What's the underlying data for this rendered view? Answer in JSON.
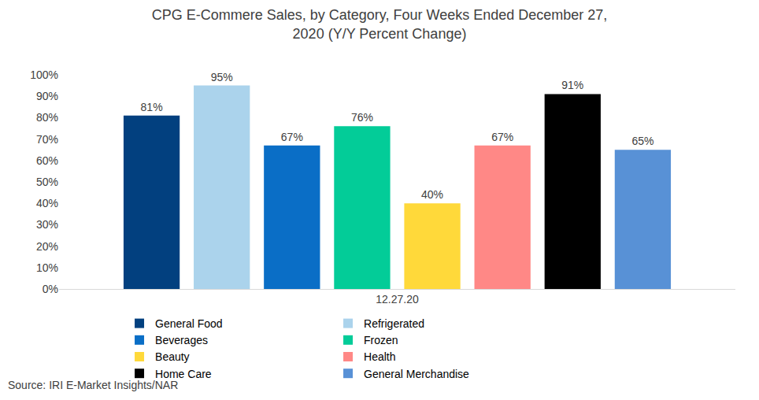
{
  "chart_data": {
    "type": "bar",
    "title": "CPG E-Commere Sales, by Category, Four Weeks Ended December 27,\n2020 (Y/Y Percent Change)",
    "source": "Source: IRI E-Market Insights/NAR",
    "categories": [
      "12.27.20"
    ],
    "series": [
      {
        "name": "General Food",
        "color": "#02407f",
        "values": [
          81
        ],
        "value_labels": [
          "81%"
        ]
      },
      {
        "name": "Refrigerated",
        "color": "#abd3ec",
        "values": [
          95
        ],
        "value_labels": [
          "95%"
        ]
      },
      {
        "name": "Beverages",
        "color": "#0a6ec6",
        "values": [
          67
        ],
        "value_labels": [
          "67%"
        ]
      },
      {
        "name": "Frozen",
        "color": "#03cc98",
        "values": [
          76
        ],
        "value_labels": [
          "76%"
        ]
      },
      {
        "name": "Beauty",
        "color": "#ffd93a",
        "values": [
          40
        ],
        "value_labels": [
          "40%"
        ]
      },
      {
        "name": "Health",
        "color": "#ff8886",
        "values": [
          67
        ],
        "value_labels": [
          "67%"
        ]
      },
      {
        "name": "Home Care",
        "color": "#000000",
        "values": [
          91
        ],
        "value_labels": [
          "91%"
        ]
      },
      {
        "name": "General Merchandise",
        "color": "#5891d6",
        "values": [
          65
        ],
        "value_labels": [
          "65%"
        ]
      }
    ],
    "ylim": [
      0,
      100
    ],
    "yticks": [
      {
        "value": 0,
        "label": "0%"
      },
      {
        "value": 10,
        "label": "10%"
      },
      {
        "value": 20,
        "label": "20%"
      },
      {
        "value": 30,
        "label": "30%"
      },
      {
        "value": 40,
        "label": "40%"
      },
      {
        "value": 50,
        "label": "50%"
      },
      {
        "value": 60,
        "label": "60%"
      },
      {
        "value": 70,
        "label": "70%"
      },
      {
        "value": 80,
        "label": "80%"
      },
      {
        "value": 90,
        "label": "90%"
      },
      {
        "value": 100,
        "label": "100%"
      }
    ],
    "grid": false,
    "legend": "bottom",
    "data_labels": true
  }
}
